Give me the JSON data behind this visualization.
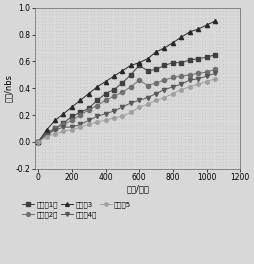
{
  "title": "",
  "xlabel": "时间/小时",
  "ylabel": "色差/nbs",
  "xlim": [
    -20,
    1200
  ],
  "ylim": [
    -0.2,
    1.0
  ],
  "xticks": [
    0,
    200,
    400,
    600,
    800,
    1000,
    1200
  ],
  "yticks": [
    -0.2,
    0.0,
    0.2,
    0.4,
    0.6,
    0.8,
    1.0
  ],
  "series": [
    {
      "label": "实施例1：",
      "marker": "s",
      "color": "#404040",
      "x": [
        0,
        50,
        100,
        150,
        200,
        250,
        300,
        350,
        400,
        450,
        500,
        550,
        600,
        650,
        700,
        750,
        800,
        850,
        900,
        950,
        1000,
        1050
      ],
      "y": [
        0.0,
        0.07,
        0.1,
        0.14,
        0.19,
        0.22,
        0.25,
        0.31,
        0.36,
        0.39,
        0.44,
        0.5,
        0.57,
        0.53,
        0.54,
        0.57,
        0.59,
        0.59,
        0.61,
        0.62,
        0.63,
        0.65
      ]
    },
    {
      "label": "实施例2：",
      "marker": "o",
      "color": "#707070",
      "x": [
        0,
        50,
        100,
        150,
        200,
        250,
        300,
        350,
        400,
        450,
        500,
        550,
        600,
        650,
        700,
        750,
        800,
        850,
        900,
        950,
        1000,
        1050
      ],
      "y": [
        0.0,
        0.06,
        0.1,
        0.13,
        0.16,
        0.2,
        0.24,
        0.27,
        0.31,
        0.34,
        0.37,
        0.41,
        0.46,
        0.42,
        0.44,
        0.46,
        0.48,
        0.49,
        0.5,
        0.51,
        0.52,
        0.54
      ]
    },
    {
      "label": "实施例3",
      "marker": "^",
      "color": "#282828",
      "x": [
        0,
        50,
        100,
        150,
        200,
        250,
        300,
        350,
        400,
        450,
        500,
        550,
        600,
        650,
        700,
        750,
        800,
        850,
        900,
        950,
        1000,
        1050
      ],
      "y": [
        0.0,
        0.09,
        0.16,
        0.21,
        0.26,
        0.31,
        0.36,
        0.41,
        0.45,
        0.49,
        0.53,
        0.57,
        0.59,
        0.62,
        0.67,
        0.7,
        0.74,
        0.78,
        0.82,
        0.84,
        0.87,
        0.9
      ]
    },
    {
      "label": "实施例4：",
      "marker": "v",
      "color": "#585858",
      "x": [
        0,
        50,
        100,
        150,
        200,
        250,
        300,
        350,
        400,
        450,
        500,
        550,
        600,
        650,
        700,
        750,
        800,
        850,
        900,
        950,
        1000,
        1050
      ],
      "y": [
        0.0,
        0.05,
        0.09,
        0.11,
        0.11,
        0.13,
        0.16,
        0.19,
        0.21,
        0.23,
        0.26,
        0.29,
        0.31,
        0.33,
        0.36,
        0.39,
        0.41,
        0.43,
        0.46,
        0.47,
        0.49,
        0.51
      ]
    },
    {
      "label": "实施例5",
      "marker": "o",
      "color": "#a0a0a0",
      "x": [
        0,
        50,
        100,
        150,
        200,
        250,
        300,
        350,
        400,
        450,
        500,
        550,
        600,
        650,
        700,
        750,
        800,
        850,
        900,
        950,
        1000,
        1050
      ],
      "y": [
        0.0,
        0.04,
        0.06,
        0.08,
        0.09,
        0.11,
        0.13,
        0.15,
        0.16,
        0.18,
        0.19,
        0.22,
        0.26,
        0.28,
        0.31,
        0.33,
        0.36,
        0.39,
        0.41,
        0.43,
        0.45,
        0.47
      ]
    }
  ],
  "background_color": "#d8d8d8",
  "dot_color": "#c0c0c0",
  "grid_color": "#ffffff",
  "legend_fontsize": 5.0,
  "axis_fontsize": 6.0,
  "tick_fontsize": 5.5,
  "marker_size": 3,
  "linewidth": 0.7
}
